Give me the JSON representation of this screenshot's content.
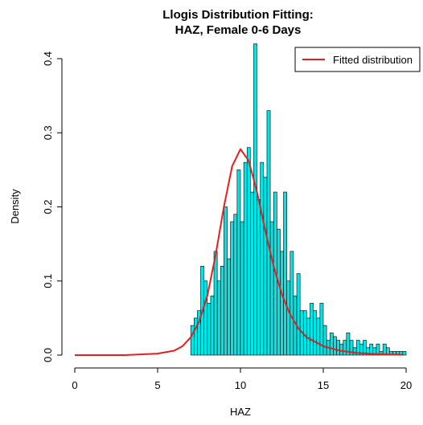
{
  "chart_data": {
    "type": "histogram",
    "title": [
      "Llogis Distribution Fitting:",
      "HAZ, Female 0-6 Days"
    ],
    "xlabel": "HAZ",
    "ylabel": "Density",
    "xlim": [
      0,
      20
    ],
    "ylim": [
      0,
      0.4
    ],
    "x_ticks": [
      0,
      5,
      10,
      15,
      20
    ],
    "y_ticks": [
      0.0,
      0.1,
      0.2,
      0.3,
      0.4
    ],
    "x_tick_labels": [
      "0",
      "5",
      "10",
      "15",
      "20"
    ],
    "y_tick_labels": [
      "0.0",
      "0.1",
      "0.2",
      "0.3",
      "0.4"
    ],
    "colors": {
      "bars": "#00e5e5",
      "bar_border": "#000000",
      "curve": "#e81e1e"
    },
    "legend": {
      "position": "top-right",
      "entries": [
        "Fitted distribution"
      ]
    },
    "histogram": {
      "bin_start": 7.0,
      "bin_width": 0.2,
      "densities": [
        0.04,
        0.05,
        0.06,
        0.12,
        0.1,
        0.07,
        0.08,
        0.14,
        0.1,
        0.12,
        0.2,
        0.13,
        0.18,
        0.19,
        0.25,
        0.18,
        0.26,
        0.28,
        0.22,
        0.42,
        0.21,
        0.26,
        0.24,
        0.33,
        0.18,
        0.22,
        0.17,
        0.14,
        0.22,
        0.1,
        0.14,
        0.08,
        0.11,
        0.06,
        0.06,
        0.05,
        0.07,
        0.06,
        0.05,
        0.07,
        0.04,
        0.02,
        0.03,
        0.025,
        0.02,
        0.015,
        0.02,
        0.03,
        0.02,
        0.01,
        0.02,
        0.015,
        0.02,
        0.01,
        0.015,
        0.01,
        0.015,
        0.005,
        0.015,
        0.01,
        0.005,
        0.005,
        0.005,
        0.005,
        0.005
      ]
    },
    "fitted_curve": {
      "name": "Fitted distribution",
      "x": [
        0,
        3,
        5,
        6,
        6.5,
        7,
        7.5,
        8,
        8.5,
        9,
        9.5,
        10,
        10.5,
        11,
        11.5,
        12,
        12.5,
        13,
        13.5,
        14,
        15,
        16,
        17,
        18,
        19,
        19.8
      ],
      "y": [
        0,
        0,
        0.002,
        0.006,
        0.012,
        0.024,
        0.045,
        0.08,
        0.135,
        0.2,
        0.255,
        0.278,
        0.262,
        0.22,
        0.168,
        0.12,
        0.082,
        0.055,
        0.036,
        0.024,
        0.012,
        0.006,
        0.003,
        0.0015,
        0.0008,
        0.0005
      ]
    }
  }
}
